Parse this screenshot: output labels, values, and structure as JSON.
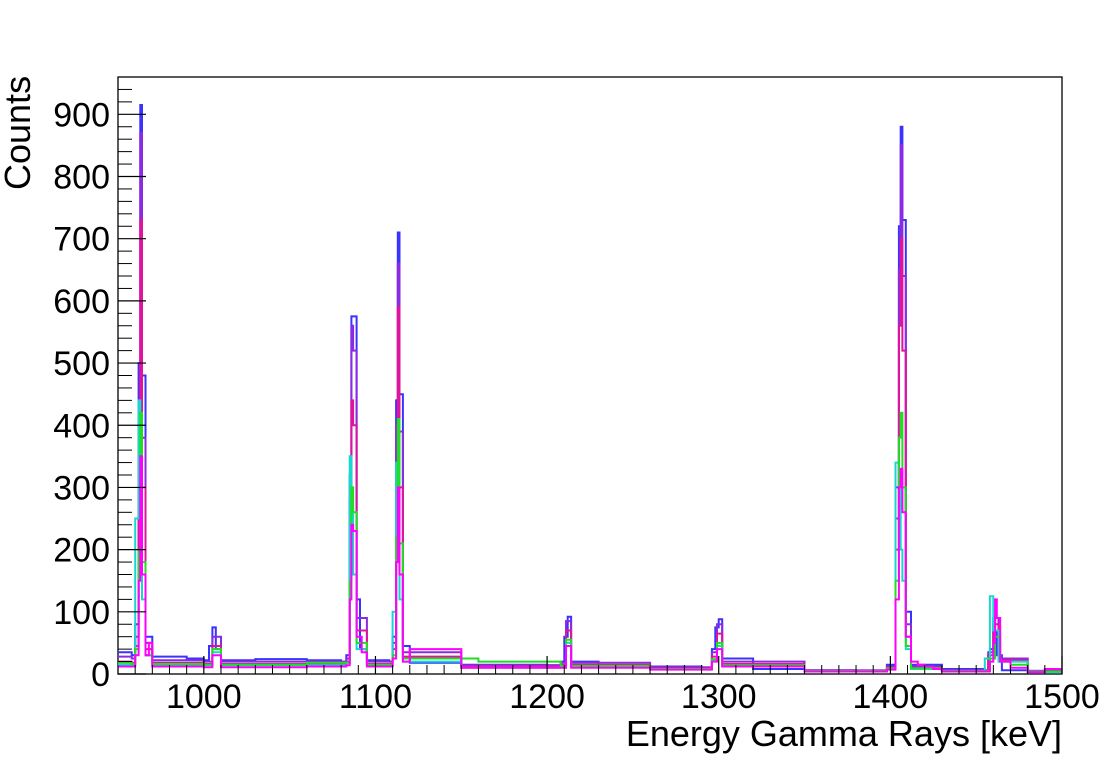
{
  "chart_data": {
    "type": "line",
    "title": "",
    "xlabel": "Energy Gamma Rays [keV]",
    "ylabel": "Counts",
    "xlim": [
      950,
      1500
    ],
    "ylim": [
      0,
      960
    ],
    "x_ticks": [
      1000,
      1100,
      1200,
      1300,
      1400,
      1500
    ],
    "y_ticks": [
      0,
      100,
      200,
      300,
      400,
      500,
      600,
      700,
      800,
      900
    ],
    "grid": false,
    "legend": "none",
    "series": [
      {
        "color": "#3a32ff",
        "x": [
          950,
          958,
          960,
          962,
          963,
          964,
          966,
          970,
          990,
          1000,
          1003,
          1005,
          1007,
          1010,
          1030,
          1060,
          1080,
          1083,
          1085,
          1086,
          1087,
          1089,
          1091,
          1095,
          1108,
          1110,
          1112,
          1113,
          1114,
          1116,
          1120,
          1150,
          1200,
          1208,
          1210,
          1212,
          1214,
          1230,
          1260,
          1290,
          1296,
          1298,
          1300,
          1302,
          1320,
          1350,
          1380,
          1398,
          1403,
          1405,
          1406,
          1407,
          1409,
          1412,
          1430,
          1455,
          1458,
          1460,
          1462,
          1465,
          1480,
          1500
        ],
        "y": [
          35,
          30,
          80,
          500,
          915,
          480,
          60,
          28,
          25,
          22,
          45,
          75,
          40,
          22,
          24,
          22,
          20,
          30,
          320,
          575,
          575,
          120,
          40,
          22,
          20,
          60,
          440,
          710,
          450,
          45,
          18,
          15,
          14,
          20,
          60,
          92,
          20,
          14,
          12,
          10,
          40,
          75,
          88,
          25,
          8,
          6,
          5,
          15,
          300,
          720,
          880,
          730,
          100,
          15,
          8,
          6,
          40,
          70,
          30,
          6,
          5,
          5
        ]
      },
      {
        "color": "#8a2be2",
        "x": [
          950,
          958,
          960,
          962,
          963,
          964,
          966,
          970,
          1000,
          1005,
          1010,
          1060,
          1083,
          1085,
          1086,
          1087,
          1089,
          1095,
          1110,
          1112,
          1113,
          1114,
          1116,
          1150,
          1208,
          1211,
          1214,
          1260,
          1296,
          1299,
          1302,
          1350,
          1398,
          1403,
          1405,
          1406,
          1407,
          1409,
          1412,
          1430,
          1457,
          1460,
          1463,
          1480,
          1500
        ],
        "y": [
          28,
          25,
          60,
          400,
          870,
          380,
          50,
          22,
          20,
          60,
          20,
          20,
          25,
          280,
          560,
          520,
          90,
          20,
          50,
          400,
          660,
          390,
          35,
          14,
          18,
          85,
          18,
          11,
          35,
          80,
          20,
          6,
          12,
          250,
          650,
          850,
          640,
          80,
          12,
          6,
          35,
          90,
          25,
          5,
          4
        ]
      },
      {
        "color": "#e0149a",
        "x": [
          950,
          958,
          960,
          962,
          963,
          964,
          966,
          970,
          1000,
          1005,
          1010,
          1060,
          1083,
          1085,
          1086,
          1087,
          1089,
          1095,
          1110,
          1112,
          1113,
          1114,
          1116,
          1150,
          1208,
          1211,
          1214,
          1260,
          1296,
          1299,
          1302,
          1350,
          1398,
          1403,
          1405,
          1406,
          1407,
          1409,
          1412,
          1430,
          1457,
          1460,
          1463,
          1480,
          1500
        ],
        "y": [
          20,
          18,
          45,
          320,
          730,
          300,
          40,
          18,
          16,
          45,
          16,
          16,
          20,
          200,
          440,
          400,
          70,
          16,
          40,
          320,
          590,
          300,
          28,
          12,
          15,
          70,
          15,
          9,
          28,
          65,
          16,
          5,
          10,
          200,
          560,
          700,
          520,
          60,
          10,
          5,
          30,
          80,
          22,
          4,
          3
        ]
      },
      {
        "color": "#16d8d0",
        "x": [
          950,
          958,
          960,
          962,
          963,
          964,
          966,
          970,
          1000,
          1005,
          1010,
          1060,
          1083,
          1085,
          1086,
          1087,
          1089,
          1095,
          1110,
          1112,
          1113,
          1114,
          1116,
          1150,
          1208,
          1211,
          1214,
          1260,
          1296,
          1299,
          1302,
          1350,
          1398,
          1403,
          1405,
          1406,
          1407,
          1409,
          1412,
          1430,
          1455,
          1458,
          1460,
          1463,
          1480,
          1500
        ],
        "y": [
          15,
          15,
          250,
          440,
          300,
          120,
          30,
          15,
          14,
          35,
          14,
          14,
          18,
          350,
          300,
          160,
          40,
          14,
          100,
          340,
          260,
          120,
          20,
          10,
          12,
          50,
          12,
          8,
          22,
          45,
          12,
          4,
          8,
          340,
          310,
          200,
          150,
          40,
          8,
          4,
          25,
          125,
          70,
          20,
          3,
          3
        ]
      },
      {
        "color": "#22dd22",
        "x": [
          950,
          958,
          960,
          962,
          963,
          964,
          966,
          970,
          1000,
          1005,
          1010,
          1060,
          1083,
          1085,
          1086,
          1087,
          1089,
          1095,
          1110,
          1112,
          1113,
          1114,
          1116,
          1160,
          1208,
          1211,
          1214,
          1260,
          1296,
          1299,
          1302,
          1350,
          1398,
          1403,
          1405,
          1406,
          1407,
          1409,
          1412,
          1430,
          1458,
          1461,
          1464,
          1470,
          1480,
          1500
        ],
        "y": [
          18,
          16,
          40,
          200,
          420,
          180,
          30,
          16,
          15,
          40,
          15,
          18,
          18,
          150,
          300,
          260,
          50,
          15,
          30,
          220,
          410,
          210,
          25,
          20,
          13,
          55,
          13,
          8,
          24,
          50,
          14,
          5,
          9,
          150,
          380,
          420,
          300,
          45,
          9,
          5,
          25,
          60,
          20,
          15,
          4,
          3
        ]
      },
      {
        "color": "#ff00ff",
        "x": [
          950,
          958,
          960,
          962,
          963,
          964,
          966,
          968,
          970,
          1000,
          1005,
          1010,
          1060,
          1083,
          1085,
          1086,
          1087,
          1089,
          1092,
          1095,
          1110,
          1112,
          1113,
          1114,
          1116,
          1120,
          1150,
          1208,
          1211,
          1214,
          1260,
          1296,
          1299,
          1302,
          1350,
          1398,
          1403,
          1405,
          1406,
          1407,
          1409,
          1412,
          1416,
          1420,
          1425,
          1430,
          1458,
          1460,
          1461,
          1462,
          1464,
          1470,
          1480,
          1490,
          1500
        ],
        "y": [
          12,
          12,
          30,
          150,
          350,
          160,
          30,
          50,
          12,
          11,
          30,
          11,
          12,
          14,
          120,
          240,
          230,
          60,
          35,
          12,
          25,
          180,
          300,
          160,
          20,
          40,
          10,
          10,
          45,
          10,
          7,
          20,
          40,
          12,
          4,
          7,
          120,
          300,
          330,
          260,
          60,
          20,
          15,
          12,
          8,
          4,
          20,
          50,
          120,
          90,
          20,
          10,
          3,
          8,
          2
        ]
      }
    ]
  }
}
